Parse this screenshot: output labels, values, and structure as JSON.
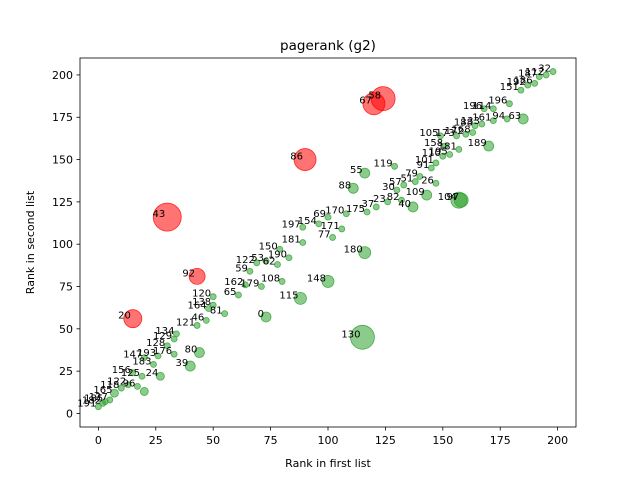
{
  "chart_data": {
    "type": "scatter",
    "title": "pagerank (g2)",
    "xlabel": "Rank in first list",
    "ylabel": "Rank in second list",
    "xlim": [
      -8,
      208
    ],
    "ylim": [
      -8,
      210
    ],
    "xticks": [
      0,
      25,
      50,
      75,
      100,
      125,
      150,
      175,
      200
    ],
    "yticks": [
      0,
      25,
      50,
      75,
      100,
      125,
      150,
      175,
      200
    ],
    "grid": false,
    "colors": {
      "green": "#2ca02c",
      "red": "#ff0000"
    },
    "points": [
      {
        "x": 0,
        "y": 4,
        "size": 3,
        "color": "green",
        "label": "191"
      },
      {
        "x": 2,
        "y": 6,
        "size": 3,
        "color": "green",
        "label": "182"
      },
      {
        "x": 3,
        "y": 7,
        "size": 3,
        "color": "green",
        "label": "185"
      },
      {
        "x": 5,
        "y": 8,
        "size": 3,
        "color": "green",
        "label": "127"
      },
      {
        "x": 7,
        "y": 12,
        "size": 4,
        "color": "green",
        "label": "165"
      },
      {
        "x": 10,
        "y": 15,
        "size": 3,
        "color": "green",
        "label": "118"
      },
      {
        "x": 13,
        "y": 17,
        "size": 3,
        "color": "green",
        "label": "122"
      },
      {
        "x": 17,
        "y": 16,
        "size": 3,
        "color": "green",
        "label": "96"
      },
      {
        "x": 20,
        "y": 13,
        "size": 4,
        "color": "green",
        "label": ""
      },
      {
        "x": 15,
        "y": 24,
        "size": 3,
        "color": "green",
        "label": "156"
      },
      {
        "x": 19,
        "y": 22,
        "size": 3,
        "color": "green",
        "label": "125"
      },
      {
        "x": 27,
        "y": 22,
        "size": 4,
        "color": "green",
        "label": "24"
      },
      {
        "x": 24,
        "y": 29,
        "size": 3,
        "color": "green",
        "label": "183"
      },
      {
        "x": 20,
        "y": 33,
        "size": 3,
        "color": "green",
        "label": "147"
      },
      {
        "x": 26,
        "y": 34,
        "size": 3,
        "color": "green",
        "label": "193"
      },
      {
        "x": 33,
        "y": 35,
        "size": 3,
        "color": "green",
        "label": "176"
      },
      {
        "x": 30,
        "y": 40,
        "size": 3,
        "color": "green",
        "label": "128"
      },
      {
        "x": 33,
        "y": 44,
        "size": 3,
        "color": "green",
        "label": "129"
      },
      {
        "x": 34,
        "y": 47,
        "size": 3,
        "color": "green",
        "label": "134"
      },
      {
        "x": 40,
        "y": 28,
        "size": 5,
        "color": "green",
        "label": "39"
      },
      {
        "x": 44,
        "y": 36,
        "size": 5,
        "color": "green",
        "label": "80"
      },
      {
        "x": 43,
        "y": 52,
        "size": 3,
        "color": "green",
        "label": "121"
      },
      {
        "x": 47,
        "y": 55,
        "size": 3,
        "color": "green",
        "label": "46"
      },
      {
        "x": 48,
        "y": 62,
        "size": 3,
        "color": "green",
        "label": "164"
      },
      {
        "x": 50,
        "y": 64,
        "size": 3,
        "color": "green",
        "label": "138"
      },
      {
        "x": 50,
        "y": 69,
        "size": 3,
        "color": "green",
        "label": "120"
      },
      {
        "x": 55,
        "y": 59,
        "size": 3,
        "color": "green",
        "label": "81"
      },
      {
        "x": 61,
        "y": 70,
        "size": 3,
        "color": "green",
        "label": "65"
      },
      {
        "x": 64,
        "y": 76,
        "size": 3,
        "color": "green",
        "label": "162"
      },
      {
        "x": 71,
        "y": 75,
        "size": 3,
        "color": "green",
        "label": "179"
      },
      {
        "x": 66,
        "y": 84,
        "size": 3,
        "color": "green",
        "label": "59"
      },
      {
        "x": 69,
        "y": 89,
        "size": 3,
        "color": "green",
        "label": "122"
      },
      {
        "x": 73,
        "y": 90,
        "size": 3,
        "color": "green",
        "label": "53"
      },
      {
        "x": 78,
        "y": 88,
        "size": 3,
        "color": "green",
        "label": "62"
      },
      {
        "x": 80,
        "y": 78,
        "size": 3,
        "color": "green",
        "label": "108"
      },
      {
        "x": 83,
        "y": 92,
        "size": 3,
        "color": "green",
        "label": "190"
      },
      {
        "x": 79,
        "y": 97,
        "size": 3,
        "color": "green",
        "label": "150"
      },
      {
        "x": 89,
        "y": 101,
        "size": 3,
        "color": "green",
        "label": "181"
      },
      {
        "x": 89,
        "y": 110,
        "size": 3,
        "color": "green",
        "label": "197"
      },
      {
        "x": 96,
        "y": 112,
        "size": 3,
        "color": "green",
        "label": "154"
      },
      {
        "x": 100,
        "y": 116,
        "size": 3,
        "color": "green",
        "label": "69"
      },
      {
        "x": 108,
        "y": 118,
        "size": 3,
        "color": "green",
        "label": "170"
      },
      {
        "x": 117,
        "y": 119,
        "size": 3,
        "color": "green",
        "label": "175"
      },
      {
        "x": 102,
        "y": 104,
        "size": 3,
        "color": "green",
        "label": "77"
      },
      {
        "x": 106,
        "y": 109,
        "size": 3,
        "color": "green",
        "label": "171"
      },
      {
        "x": 73,
        "y": 57,
        "size": 5,
        "color": "green",
        "label": "0"
      },
      {
        "x": 88,
        "y": 68,
        "size": 6,
        "color": "green",
        "label": "115"
      },
      {
        "x": 100,
        "y": 78,
        "size": 6,
        "color": "green",
        "label": "148"
      },
      {
        "x": 116,
        "y": 95,
        "size": 6,
        "color": "green",
        "label": "180"
      },
      {
        "x": 121,
        "y": 122,
        "size": 3,
        "color": "green",
        "label": "37"
      },
      {
        "x": 126,
        "y": 125,
        "size": 3,
        "color": "green",
        "label": "23"
      },
      {
        "x": 132,
        "y": 126,
        "size": 3,
        "color": "green",
        "label": "82"
      },
      {
        "x": 137,
        "y": 122,
        "size": 5,
        "color": "green",
        "label": "40"
      },
      {
        "x": 130,
        "y": 132,
        "size": 3,
        "color": "green",
        "label": "30"
      },
      {
        "x": 133,
        "y": 135,
        "size": 3,
        "color": "green",
        "label": "57"
      },
      {
        "x": 138,
        "y": 137,
        "size": 3,
        "color": "green",
        "label": "51"
      },
      {
        "x": 140,
        "y": 140,
        "size": 3,
        "color": "green",
        "label": "79"
      },
      {
        "x": 143,
        "y": 129,
        "size": 5,
        "color": "green",
        "label": "109"
      },
      {
        "x": 147,
        "y": 136,
        "size": 3,
        "color": "green",
        "label": "26"
      },
      {
        "x": 145,
        "y": 145,
        "size": 3,
        "color": "green",
        "label": "91"
      },
      {
        "x": 147,
        "y": 148,
        "size": 3,
        "color": "green",
        "label": "101"
      },
      {
        "x": 150,
        "y": 152,
        "size": 3,
        "color": "green",
        "label": "110"
      },
      {
        "x": 153,
        "y": 153,
        "size": 3,
        "color": "green",
        "label": "195"
      },
      {
        "x": 157,
        "y": 156,
        "size": 3,
        "color": "green",
        "label": "181"
      },
      {
        "x": 163,
        "y": 166,
        "size": 3,
        "color": "green",
        "label": "168"
      },
      {
        "x": 167,
        "y": 171,
        "size": 3,
        "color": "green",
        "label": "133"
      },
      {
        "x": 172,
        "y": 173,
        "size": 3,
        "color": "green",
        "label": "161"
      },
      {
        "x": 178,
        "y": 174,
        "size": 3,
        "color": "green",
        "label": "94"
      },
      {
        "x": 185,
        "y": 174,
        "size": 5,
        "color": "green",
        "label": "63"
      },
      {
        "x": 170,
        "y": 158,
        "size": 5,
        "color": "green",
        "label": "189"
      },
      {
        "x": 151,
        "y": 158,
        "size": 3,
        "color": "green",
        "label": "158"
      },
      {
        "x": 149,
        "y": 164,
        "size": 3,
        "color": "green",
        "label": "105"
      },
      {
        "x": 156,
        "y": 164,
        "size": 3,
        "color": "green",
        "label": "173"
      },
      {
        "x": 160,
        "y": 165,
        "size": 3,
        "color": "green",
        "label": "172"
      },
      {
        "x": 164,
        "y": 170,
        "size": 3,
        "color": "green",
        "label": "188"
      },
      {
        "x": 168,
        "y": 180,
        "size": 3,
        "color": "green",
        "label": "196"
      },
      {
        "x": 172,
        "y": 180,
        "size": 3,
        "color": "green",
        "label": "114"
      },
      {
        "x": 179,
        "y": 183,
        "size": 3,
        "color": "green",
        "label": "196"
      },
      {
        "x": 184,
        "y": 191,
        "size": 3,
        "color": "green",
        "label": "151"
      },
      {
        "x": 187,
        "y": 194,
        "size": 3,
        "color": "green",
        "label": "192"
      },
      {
        "x": 190,
        "y": 195,
        "size": 3,
        "color": "green",
        "label": "186"
      },
      {
        "x": 192,
        "y": 199,
        "size": 3,
        "color": "green",
        "label": "187"
      },
      {
        "x": 195,
        "y": 200,
        "size": 3,
        "color": "green",
        "label": "112"
      },
      {
        "x": 198,
        "y": 202,
        "size": 3,
        "color": "green",
        "label": "32"
      },
      {
        "x": 157,
        "y": 126,
        "size": 8,
        "color": "green",
        "label": "104"
      },
      {
        "x": 158,
        "y": 126,
        "size": 7,
        "color": "green",
        "label": "97"
      },
      {
        "x": 115,
        "y": 45,
        "size": 12,
        "color": "green",
        "label": "130"
      },
      {
        "x": 116,
        "y": 142,
        "size": 5,
        "color": "green",
        "label": "55"
      },
      {
        "x": 111,
        "y": 133,
        "size": 5,
        "color": "green",
        "label": "88"
      },
      {
        "x": 129,
        "y": 146,
        "size": 3,
        "color": "green",
        "label": "119"
      },
      {
        "x": 15,
        "y": 56,
        "size": 9,
        "color": "red",
        "label": "20"
      },
      {
        "x": 30,
        "y": 116,
        "size": 14,
        "color": "red",
        "label": "43"
      },
      {
        "x": 43,
        "y": 81,
        "size": 8,
        "color": "red",
        "label": "92"
      },
      {
        "x": 90,
        "y": 150,
        "size": 11,
        "color": "red",
        "label": "86"
      },
      {
        "x": 120,
        "y": 183,
        "size": 11,
        "color": "red",
        "label": "67"
      },
      {
        "x": 124,
        "y": 186,
        "size": 12,
        "color": "red",
        "label": "58"
      }
    ]
  }
}
